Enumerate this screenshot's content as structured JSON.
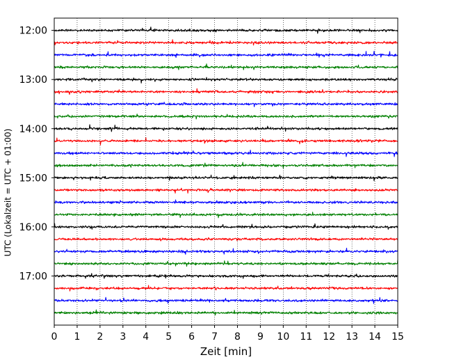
{
  "chart_data": {
    "type": "line",
    "title": "",
    "xlabel": "Zeit  [min]",
    "ylabel": "UTC (Lokalzeit = UTC + 01:00)",
    "xlim": [
      0,
      15
    ],
    "x_ticks": [
      "0",
      "1",
      "2",
      "3",
      "4",
      "5",
      "6",
      "7",
      "8",
      "9",
      "10",
      "11",
      "12",
      "13",
      "14",
      "15"
    ],
    "y_ticks": [
      "12:00",
      "13:00",
      "14:00",
      "15:00",
      "16:00",
      "17:00"
    ],
    "y_range": [
      "11:45",
      "18:00"
    ],
    "trace_interval_minutes": 15,
    "trace_count": 24,
    "first_trace": "12:00",
    "series_colors": [
      "#000000",
      "#ff0000",
      "#0000ff",
      "#008000"
    ],
    "vertical_grid": "dotted, at each minute",
    "noise": "random seismic trace, small amplitude"
  }
}
